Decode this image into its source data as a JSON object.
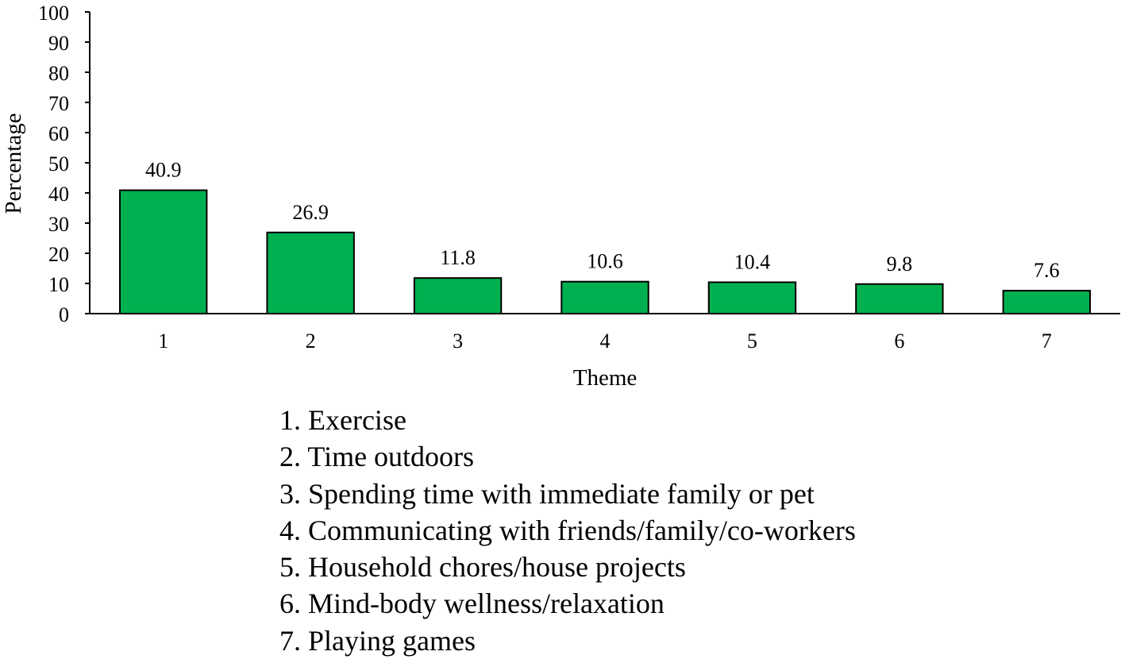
{
  "chart_data": {
    "type": "bar",
    "title": "",
    "xlabel": "Theme",
    "ylabel": "Percentage",
    "ylim": [
      0,
      100
    ],
    "yticks": [
      0,
      10,
      20,
      30,
      40,
      50,
      60,
      70,
      80,
      90,
      100
    ],
    "categories": [
      "1",
      "2",
      "3",
      "4",
      "5",
      "6",
      "7"
    ],
    "values": [
      40.9,
      26.9,
      11.8,
      10.6,
      10.4,
      9.8,
      7.6
    ],
    "data_labels": [
      "40.9",
      "26.9",
      "11.8",
      "10.6",
      "10.4",
      "9.8",
      "7.6"
    ],
    "bar_color": "#00b050",
    "bar_edge_color": "#000000",
    "grid": false,
    "legend_items": [
      "1. Exercise",
      "2. Time outdoors",
      "3. Spending time with immediate family or pet",
      "4. Communicating with friends/family/co-workers",
      "5. Household chores/house projects",
      "6. Mind-body wellness/relaxation",
      "7. Playing games"
    ]
  }
}
